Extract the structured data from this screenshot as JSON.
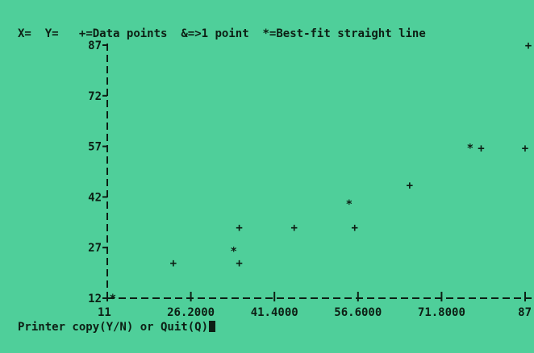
{
  "header": {
    "x_label": "X=",
    "y_label": "Y=",
    "legend": [
      {
        "symbol": "+",
        "text": "=Data points"
      },
      {
        "symbol": "&",
        "text": "=>1 point"
      },
      {
        "symbol": "*",
        "text": "=Best-fit straight line"
      }
    ]
  },
  "prompt": {
    "text": "Printer copy(Y/N) or Quit(Q)"
  },
  "colors": {
    "screen": "#4fcf9a",
    "ink": "#0d1f14"
  },
  "chart_data": {
    "type": "scatter",
    "title": "",
    "xlabel": "",
    "ylabel": "",
    "xlim": [
      11,
      87
    ],
    "ylim": [
      12,
      87
    ],
    "x_ticks": [
      {
        "value": 11,
        "label": "11"
      },
      {
        "value": 26.2,
        "label": "26.2000"
      },
      {
        "value": 41.4,
        "label": "41.4000"
      },
      {
        "value": 56.6,
        "label": "56.6000"
      },
      {
        "value": 71.8,
        "label": "71.8000"
      },
      {
        "value": 87,
        "label": "87"
      }
    ],
    "y_ticks": [
      {
        "value": 87,
        "label": "87"
      },
      {
        "value": 72,
        "label": "72"
      },
      {
        "value": 57,
        "label": "57"
      },
      {
        "value": 42,
        "label": "42"
      },
      {
        "value": 27,
        "label": "27"
      },
      {
        "value": 12,
        "label": "12"
      }
    ],
    "series": [
      {
        "symbol": "+",
        "points": [
          [
            23,
            22.5
          ],
          [
            35,
            22.5
          ],
          [
            35,
            33
          ],
          [
            45,
            33
          ],
          [
            56,
            33
          ],
          [
            66,
            45.5
          ],
          [
            79,
            56.5
          ],
          [
            87,
            56.5
          ],
          [
            88,
            87
          ]
        ]
      },
      {
        "symbol": "*",
        "points": [
          [
            12,
            12
          ],
          [
            34,
            26
          ],
          [
            55,
            40
          ],
          [
            77,
            56.5
          ]
        ]
      }
    ]
  }
}
